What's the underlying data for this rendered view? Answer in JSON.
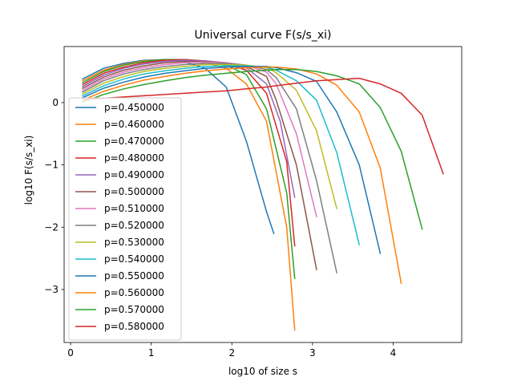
{
  "chart_data": {
    "type": "line",
    "title": "Universal curve F(s/s_xi)",
    "xlabel": "log10 of size s",
    "ylabel": "log10 F(s/s_xi)",
    "xlim": [
      -0.08,
      4.85
    ],
    "ylim": [
      -3.85,
      0.9
    ],
    "xticks": [
      0,
      1,
      2,
      3,
      4
    ],
    "yticks": [
      -3,
      -2,
      -1,
      0
    ],
    "legend_position": "lower-left",
    "series": [
      {
        "name": "p=0.450000",
        "color": "#1f77b4",
        "x": [
          0.15,
          0.41,
          0.66,
          0.91,
          1.17,
          1.42,
          1.67,
          1.93,
          2.18,
          2.43,
          2.52
        ],
        "y": [
          0.38,
          0.55,
          0.63,
          0.68,
          0.69,
          0.65,
          0.55,
          0.25,
          -0.62,
          -1.75,
          -2.1
        ]
      },
      {
        "name": "p=0.460000",
        "color": "#ff7f0e",
        "x": [
          0.15,
          0.41,
          0.66,
          0.91,
          1.17,
          1.42,
          1.67,
          1.93,
          2.18,
          2.43,
          2.68,
          2.78
        ],
        "y": [
          0.35,
          0.52,
          0.61,
          0.67,
          0.69,
          0.68,
          0.64,
          0.55,
          0.3,
          -0.3,
          -2.0,
          -3.65
        ]
      },
      {
        "name": "p=0.470000",
        "color": "#2ca02c",
        "x": [
          0.15,
          0.41,
          0.66,
          0.91,
          1.17,
          1.42,
          1.67,
          1.93,
          2.18,
          2.43,
          2.68,
          2.78
        ],
        "y": [
          0.32,
          0.5,
          0.6,
          0.66,
          0.69,
          0.69,
          0.66,
          0.6,
          0.45,
          -0.1,
          -1.45,
          -2.82
        ]
      },
      {
        "name": "p=0.480000",
        "color": "#d62728",
        "x": [
          0.15,
          0.41,
          0.66,
          0.91,
          1.17,
          1.42,
          1.67,
          1.93,
          2.18,
          2.43,
          2.68,
          2.78
        ],
        "y": [
          0.29,
          0.47,
          0.57,
          0.64,
          0.68,
          0.69,
          0.67,
          0.62,
          0.52,
          0.15,
          -0.95,
          -2.3
        ]
      },
      {
        "name": "p=0.490000",
        "color": "#9467bd",
        "x": [
          0.15,
          0.41,
          0.66,
          0.91,
          1.17,
          1.42,
          1.67,
          1.93,
          2.18,
          2.43,
          2.6,
          2.78
        ],
        "y": [
          0.26,
          0.44,
          0.55,
          0.62,
          0.66,
          0.68,
          0.67,
          0.64,
          0.56,
          0.3,
          -0.3,
          -1.52
        ]
      },
      {
        "name": "p=0.500000",
        "color": "#8c564b",
        "x": [
          0.15,
          0.41,
          0.66,
          0.91,
          1.17,
          1.42,
          1.67,
          1.93,
          2.18,
          2.43,
          2.55,
          2.8,
          3.05
        ],
        "y": [
          0.23,
          0.41,
          0.52,
          0.59,
          0.64,
          0.66,
          0.66,
          0.64,
          0.58,
          0.42,
          0.04,
          -1.0,
          -2.68
        ]
      },
      {
        "name": "p=0.510000",
        "color": "#e377c2",
        "x": [
          0.15,
          0.41,
          0.66,
          0.91,
          1.17,
          1.42,
          1.67,
          1.93,
          2.18,
          2.43,
          2.55,
          2.8,
          3.05
        ],
        "y": [
          0.2,
          0.38,
          0.49,
          0.56,
          0.61,
          0.64,
          0.65,
          0.64,
          0.6,
          0.49,
          0.3,
          -0.5,
          -1.83
        ]
      },
      {
        "name": "p=0.520000",
        "color": "#7f7f7f",
        "x": [
          0.15,
          0.41,
          0.66,
          0.91,
          1.17,
          1.42,
          1.67,
          1.93,
          2.18,
          2.43,
          2.55,
          2.8,
          3.05,
          3.3
        ],
        "y": [
          0.17,
          0.35,
          0.46,
          0.53,
          0.58,
          0.61,
          0.63,
          0.63,
          0.6,
          0.53,
          0.4,
          -0.1,
          -1.25,
          -2.73
        ]
      },
      {
        "name": "p=0.530000",
        "color": "#bcbd22",
        "x": [
          0.15,
          0.41,
          0.66,
          0.91,
          1.17,
          1.42,
          1.67,
          1.93,
          2.18,
          2.43,
          2.55,
          2.8,
          3.05,
          3.3
        ],
        "y": [
          0.14,
          0.31,
          0.42,
          0.5,
          0.55,
          0.58,
          0.61,
          0.61,
          0.6,
          0.56,
          0.48,
          0.2,
          -0.45,
          -1.7
        ]
      },
      {
        "name": "p=0.540000",
        "color": "#17becf",
        "x": [
          0.15,
          0.41,
          0.66,
          0.91,
          1.17,
          1.42,
          1.67,
          1.93,
          2.18,
          2.43,
          2.55,
          2.8,
          3.05,
          3.3,
          3.58
        ],
        "y": [
          0.11,
          0.27,
          0.38,
          0.46,
          0.51,
          0.55,
          0.58,
          0.59,
          0.59,
          0.57,
          0.52,
          0.35,
          0.04,
          -0.8,
          -2.28
        ]
      },
      {
        "name": "p=0.550000",
        "color": "#1f77b4",
        "x": [
          0.15,
          0.41,
          0.66,
          0.91,
          1.17,
          1.42,
          1.67,
          1.93,
          2.18,
          2.43,
          2.55,
          2.8,
          3.05,
          3.3,
          3.58,
          3.84
        ],
        "y": [
          0.08,
          0.23,
          0.33,
          0.41,
          0.47,
          0.51,
          0.55,
          0.57,
          0.58,
          0.58,
          0.56,
          0.48,
          0.34,
          -0.15,
          -1.0,
          -2.42
        ]
      },
      {
        "name": "p=0.560000",
        "color": "#ff7f0e",
        "x": [
          0.15,
          0.41,
          0.66,
          0.91,
          1.17,
          1.42,
          1.67,
          1.93,
          2.18,
          2.43,
          2.55,
          2.8,
          3.05,
          3.3,
          3.58,
          3.84,
          4.1
        ],
        "y": [
          0.04,
          0.18,
          0.28,
          0.36,
          0.42,
          0.47,
          0.51,
          0.54,
          0.56,
          0.57,
          0.57,
          0.54,
          0.46,
          0.28,
          -0.15,
          -1.05,
          -2.9
        ]
      },
      {
        "name": "p=0.570000",
        "color": "#2ca02c",
        "x": [
          0.15,
          0.41,
          0.66,
          0.91,
          1.17,
          1.42,
          1.67,
          1.93,
          2.18,
          2.43,
          2.55,
          2.8,
          3.05,
          3.3,
          3.58,
          3.84,
          4.1,
          4.36
        ],
        "y": [
          0.01,
          0.13,
          0.22,
          0.29,
          0.35,
          0.4,
          0.44,
          0.47,
          0.5,
          0.52,
          0.53,
          0.53,
          0.5,
          0.43,
          0.3,
          -0.08,
          -0.78,
          -2.03
        ]
      },
      {
        "name": "p=0.580000",
        "color": "#d62728",
        "x": [
          0.15,
          0.41,
          0.66,
          0.91,
          1.17,
          1.42,
          1.67,
          1.93,
          2.18,
          2.43,
          2.55,
          2.8,
          3.05,
          3.3,
          3.58,
          3.84,
          4.1,
          4.36,
          4.62
        ],
        "y": [
          0.05,
          0.07,
          0.09,
          0.11,
          0.13,
          0.15,
          0.17,
          0.19,
          0.22,
          0.25,
          0.27,
          0.31,
          0.35,
          0.37,
          0.39,
          0.3,
          0.15,
          -0.2,
          -1.14
        ]
      }
    ]
  }
}
